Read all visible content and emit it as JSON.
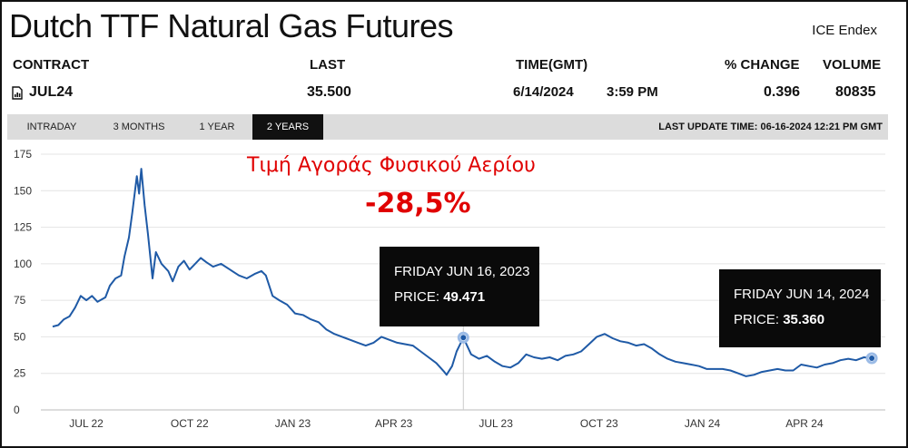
{
  "header": {
    "title": "Dutch TTF Natural Gas Futures",
    "exchange": "ICE Endex"
  },
  "columns": {
    "contract": "CONTRACT",
    "last": "LAST",
    "time": "TIME(GMT)",
    "pct_change": "% CHANGE",
    "volume": "VOLUME"
  },
  "quote": {
    "contract": "JUL24",
    "last": "35.500",
    "date": "6/14/2024",
    "time": "3:59 PM",
    "pct_change": "0.396",
    "volume": "80835"
  },
  "tabs": [
    {
      "label": "INTRADAY",
      "active": false
    },
    {
      "label": "3 MONTHS",
      "active": false
    },
    {
      "label": "1 YEAR",
      "active": false
    },
    {
      "label": "2 YEARS",
      "active": true
    }
  ],
  "last_update": "LAST UPDATE TIME: 06-16-2024 12:21 PM GMT",
  "annotation": {
    "line1": "Τιμή Αγοράς Φυσικού Αερίου",
    "line2": "-28,5%"
  },
  "tooltips": [
    {
      "date": "FRIDAY JUN 16, 2023",
      "price_label": "PRICE:",
      "price": "49.471"
    },
    {
      "date": "FRIDAY JUN 14, 2024",
      "price_label": "PRICE:",
      "price": "35.360"
    }
  ],
  "colors": {
    "line": "#1f5aa6",
    "annotation": "#e00000",
    "tab_bar": "#dcdcdc",
    "tooltip_bg": "#0a0a0a"
  },
  "chart_data": {
    "type": "line",
    "title": "",
    "xlabel": "",
    "ylabel": "",
    "ylim": [
      0,
      175
    ],
    "y_ticks": [
      0,
      25,
      50,
      75,
      100,
      125,
      150,
      175
    ],
    "x_ticks": [
      {
        "date": "2022-07-15",
        "label": "JUL 22"
      },
      {
        "date": "2022-10-15",
        "label": "OCT 22"
      },
      {
        "date": "2023-01-15",
        "label": "JAN 23"
      },
      {
        "date": "2023-04-15",
        "label": "APR 23"
      },
      {
        "date": "2023-07-15",
        "label": "JUL 23"
      },
      {
        "date": "2023-10-15",
        "label": "OCT 23"
      },
      {
        "date": "2024-01-15",
        "label": "JAN 24"
      },
      {
        "date": "2024-04-15",
        "label": "APR 24"
      }
    ],
    "grid": "horizontal",
    "series": [
      {
        "name": "",
        "points": [
          [
            "2022-06-15",
            57
          ],
          [
            "2022-06-20",
            58
          ],
          [
            "2022-06-25",
            62
          ],
          [
            "2022-06-30",
            64
          ],
          [
            "2022-07-05",
            70
          ],
          [
            "2022-07-10",
            78
          ],
          [
            "2022-07-15",
            75
          ],
          [
            "2022-07-20",
            78
          ],
          [
            "2022-07-25",
            74
          ],
          [
            "2022-08-01",
            77
          ],
          [
            "2022-08-05",
            85
          ],
          [
            "2022-08-10",
            90
          ],
          [
            "2022-08-15",
            92
          ],
          [
            "2022-08-18",
            105
          ],
          [
            "2022-08-22",
            118
          ],
          [
            "2022-08-25",
            135
          ],
          [
            "2022-08-29",
            160
          ],
          [
            "2022-08-31",
            148
          ],
          [
            "2022-09-02",
            165
          ],
          [
            "2022-09-05",
            140
          ],
          [
            "2022-09-08",
            120
          ],
          [
            "2022-09-12",
            90
          ],
          [
            "2022-09-15",
            108
          ],
          [
            "2022-09-20",
            100
          ],
          [
            "2022-09-26",
            95
          ],
          [
            "2022-09-30",
            88
          ],
          [
            "2022-10-05",
            98
          ],
          [
            "2022-10-10",
            102
          ],
          [
            "2022-10-15",
            96
          ],
          [
            "2022-10-20",
            100
          ],
          [
            "2022-10-25",
            104
          ],
          [
            "2022-10-30",
            101
          ],
          [
            "2022-11-05",
            98
          ],
          [
            "2022-11-12",
            100
          ],
          [
            "2022-11-20",
            96
          ],
          [
            "2022-11-28",
            92
          ],
          [
            "2022-12-05",
            90
          ],
          [
            "2022-12-12",
            93
          ],
          [
            "2022-12-18",
            95
          ],
          [
            "2022-12-22",
            92
          ],
          [
            "2022-12-28",
            78
          ],
          [
            "2023-01-03",
            75
          ],
          [
            "2023-01-10",
            72
          ],
          [
            "2023-01-17",
            66
          ],
          [
            "2023-01-24",
            65
          ],
          [
            "2023-01-31",
            62
          ],
          [
            "2023-02-07",
            60
          ],
          [
            "2023-02-14",
            55
          ],
          [
            "2023-02-21",
            52
          ],
          [
            "2023-02-28",
            50
          ],
          [
            "2023-03-07",
            48
          ],
          [
            "2023-03-14",
            46
          ],
          [
            "2023-03-21",
            44
          ],
          [
            "2023-03-28",
            46
          ],
          [
            "2023-04-04",
            50
          ],
          [
            "2023-04-11",
            48
          ],
          [
            "2023-04-18",
            46
          ],
          [
            "2023-04-25",
            45
          ],
          [
            "2023-05-02",
            44
          ],
          [
            "2023-05-09",
            40
          ],
          [
            "2023-05-16",
            36
          ],
          [
            "2023-05-23",
            32
          ],
          [
            "2023-05-30",
            26
          ],
          [
            "2023-06-01",
            24
          ],
          [
            "2023-06-06",
            30
          ],
          [
            "2023-06-10",
            40
          ],
          [
            "2023-06-16",
            49.471
          ],
          [
            "2023-06-23",
            38
          ],
          [
            "2023-06-30",
            35
          ],
          [
            "2023-07-07",
            37
          ],
          [
            "2023-07-14",
            33
          ],
          [
            "2023-07-21",
            30
          ],
          [
            "2023-07-28",
            29
          ],
          [
            "2023-08-04",
            32
          ],
          [
            "2023-08-11",
            38
          ],
          [
            "2023-08-18",
            36
          ],
          [
            "2023-08-25",
            35
          ],
          [
            "2023-09-01",
            36
          ],
          [
            "2023-09-08",
            34
          ],
          [
            "2023-09-15",
            37
          ],
          [
            "2023-09-22",
            38
          ],
          [
            "2023-09-29",
            40
          ],
          [
            "2023-10-06",
            45
          ],
          [
            "2023-10-13",
            50
          ],
          [
            "2023-10-20",
            52
          ],
          [
            "2023-10-27",
            49
          ],
          [
            "2023-11-03",
            47
          ],
          [
            "2023-11-10",
            46
          ],
          [
            "2023-11-17",
            44
          ],
          [
            "2023-11-24",
            45
          ],
          [
            "2023-12-01",
            42
          ],
          [
            "2023-12-08",
            38
          ],
          [
            "2023-12-15",
            35
          ],
          [
            "2023-12-22",
            33
          ],
          [
            "2023-12-29",
            32
          ],
          [
            "2024-01-05",
            31
          ],
          [
            "2024-01-12",
            30
          ],
          [
            "2024-01-19",
            28
          ],
          [
            "2024-01-26",
            28
          ],
          [
            "2024-02-02",
            28
          ],
          [
            "2024-02-09",
            27
          ],
          [
            "2024-02-16",
            25
          ],
          [
            "2024-02-23",
            23
          ],
          [
            "2024-03-01",
            24
          ],
          [
            "2024-03-08",
            26
          ],
          [
            "2024-03-15",
            27
          ],
          [
            "2024-03-22",
            28
          ],
          [
            "2024-03-29",
            27
          ],
          [
            "2024-04-05",
            27
          ],
          [
            "2024-04-12",
            31
          ],
          [
            "2024-04-19",
            30
          ],
          [
            "2024-04-26",
            29
          ],
          [
            "2024-05-03",
            31
          ],
          [
            "2024-05-10",
            32
          ],
          [
            "2024-05-17",
            34
          ],
          [
            "2024-05-24",
            35
          ],
          [
            "2024-05-31",
            34
          ],
          [
            "2024-06-07",
            36
          ],
          [
            "2024-06-14",
            35.36
          ]
        ]
      }
    ],
    "highlight_points": [
      {
        "date": "2023-06-16",
        "value": 49.471
      },
      {
        "date": "2024-06-14",
        "value": 35.36
      }
    ]
  }
}
